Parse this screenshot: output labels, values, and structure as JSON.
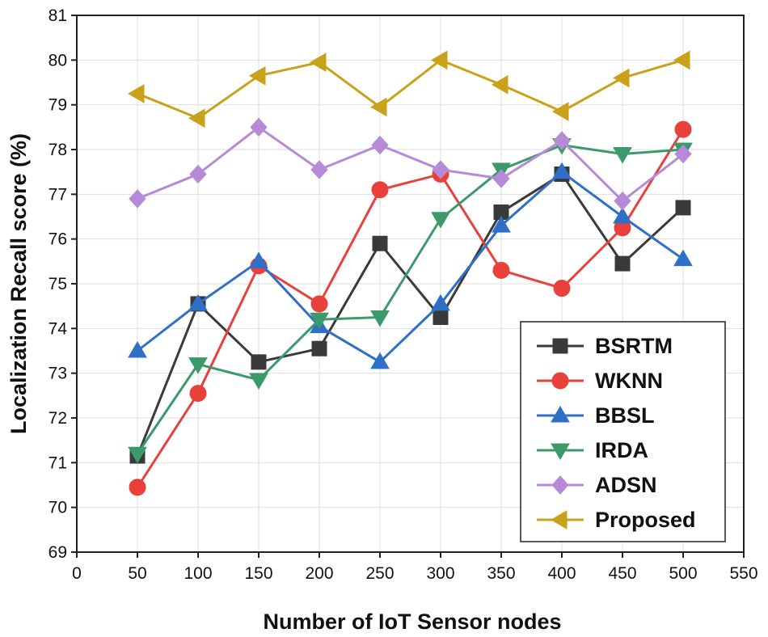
{
  "chart_data": {
    "type": "line",
    "title": "",
    "xlabel": "Number of IoT Sensor nodes",
    "ylabel": "Localization Recall score (%)",
    "xlim": [
      0,
      550
    ],
    "ylim": [
      69,
      81
    ],
    "xticks": [
      0,
      50,
      100,
      150,
      200,
      250,
      300,
      350,
      400,
      450,
      500,
      550
    ],
    "yticks": [
      69,
      70,
      71,
      72,
      73,
      74,
      75,
      76,
      77,
      78,
      79,
      80,
      81
    ],
    "grid": true,
    "legend_position": "bottom-right",
    "x": [
      50,
      100,
      150,
      200,
      250,
      300,
      350,
      400,
      450,
      500
    ],
    "series": [
      {
        "name": "BSRTM",
        "marker": "square",
        "color": "#3a3a3a",
        "values": [
          71.15,
          74.55,
          73.25,
          73.55,
          75.9,
          74.25,
          76.6,
          77.45,
          75.45,
          76.7
        ]
      },
      {
        "name": "WKNN",
        "marker": "circle",
        "color": "#e8413b",
        "values": [
          70.45,
          72.55,
          75.4,
          74.55,
          77.1,
          77.45,
          75.3,
          74.9,
          76.25,
          78.45
        ]
      },
      {
        "name": "BBSL",
        "marker": "triangle-up",
        "color": "#2f6fc8",
        "values": [
          73.5,
          74.55,
          75.5,
          74.05,
          73.25,
          74.55,
          76.3,
          77.5,
          76.5,
          75.55
        ]
      },
      {
        "name": "IRDA",
        "marker": "triangle-down",
        "color": "#3a9a6a",
        "values": [
          71.2,
          73.2,
          72.85,
          74.2,
          74.25,
          76.45,
          77.55,
          78.1,
          77.9,
          78.0
        ]
      },
      {
        "name": "ADSN",
        "marker": "diamond",
        "color": "#b78ad8",
        "values": [
          76.9,
          77.45,
          78.5,
          77.55,
          78.1,
          77.55,
          77.35,
          78.2,
          76.85,
          77.9
        ]
      },
      {
        "name": "Proposed",
        "marker": "triangle-left",
        "color": "#c9a21a",
        "values": [
          79.25,
          78.7,
          79.65,
          79.95,
          78.95,
          80.0,
          79.45,
          78.85,
          79.6,
          80.0
        ]
      }
    ]
  }
}
